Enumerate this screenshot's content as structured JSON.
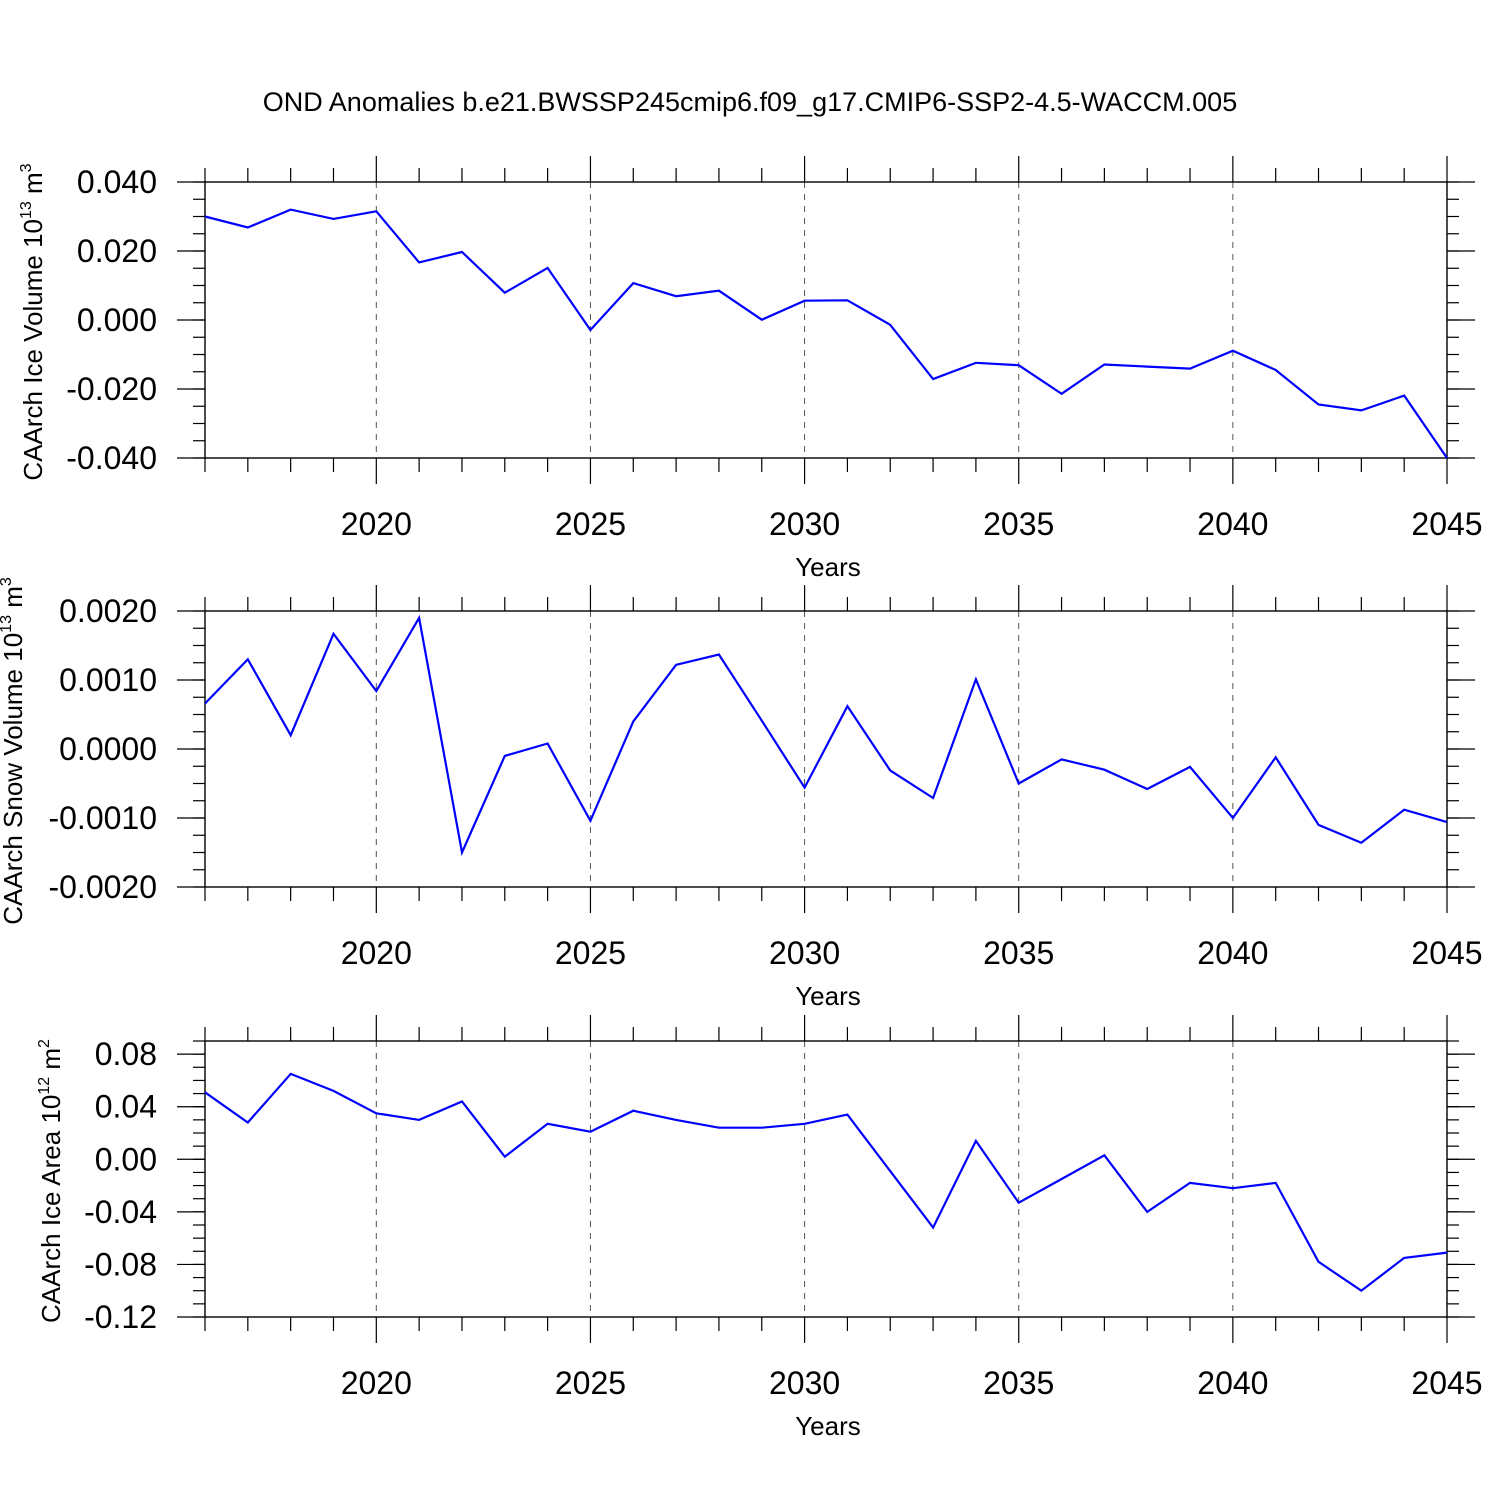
{
  "title": "OND Anomalies b.e21.BWSSP245cmip6.f09_g17.CMIP6-SSP2-4.5-WACCM.005",
  "series_color": "#0000ff",
  "chart_data": [
    {
      "type": "line",
      "xlabel": "Years",
      "ylabel": {
        "main": "CAArch Ice Volume 10",
        "exp": "13",
        "unit": " m",
        "unit_exp": "3"
      },
      "xlim": [
        2016,
        2045
      ],
      "ylim": [
        -0.04,
        0.04
      ],
      "grid": "vertical dashed at major x ticks",
      "x_ticks": [
        2020,
        2025,
        2030,
        2035,
        2040,
        2045
      ],
      "x_tick_labels": [
        "2020",
        "2025",
        "2030",
        "2035",
        "2040",
        "2045"
      ],
      "y_ticks": [
        -0.04,
        -0.02,
        0.0,
        0.02,
        0.04
      ],
      "y_tick_labels": [
        "-0.040",
        "-0.020",
        "0.000",
        "0.020",
        "0.040"
      ],
      "y_minor_step": 0.005,
      "x": [
        2016,
        2017,
        2018,
        2019,
        2020,
        2021,
        2022,
        2023,
        2024,
        2025,
        2026,
        2027,
        2028,
        2029,
        2030,
        2031,
        2032,
        2033,
        2034,
        2035,
        2036,
        2037,
        2038,
        2039,
        2040,
        2041,
        2042,
        2043,
        2044,
        2045
      ],
      "series": [
        {
          "values": [
            0.03,
            0.0268,
            0.032,
            0.0293,
            0.0315,
            0.0167,
            0.0197,
            0.0079,
            0.0151,
            -0.0029,
            0.0107,
            0.0069,
            0.0085,
            0.0001,
            0.0056,
            0.0057,
            -0.0014,
            -0.0171,
            -0.0124,
            -0.0131,
            -0.0214,
            -0.0129,
            -0.0135,
            -0.0141,
            -0.0089,
            -0.0145,
            -0.0245,
            -0.0262,
            -0.0219,
            -0.04
          ]
        }
      ]
    },
    {
      "type": "line",
      "xlabel": "Years",
      "ylabel": {
        "main": "CAArch Snow Volume 10",
        "exp": "13",
        "unit": " m",
        "unit_exp": "3"
      },
      "xlim": [
        2016,
        2045
      ],
      "ylim": [
        -0.002,
        0.002
      ],
      "grid": "vertical dashed at major x ticks",
      "x_ticks": [
        2020,
        2025,
        2030,
        2035,
        2040,
        2045
      ],
      "x_tick_labels": [
        "2020",
        "2025",
        "2030",
        "2035",
        "2040",
        "2045"
      ],
      "y_ticks": [
        -0.002,
        -0.001,
        0.0,
        0.001,
        0.002
      ],
      "y_tick_labels": [
        "-0.0020",
        "-0.0010",
        "0.0000",
        "0.0010",
        "0.0020"
      ],
      "y_minor_step": 0.00025,
      "x": [
        2016,
        2017,
        2018,
        2019,
        2020,
        2021,
        2022,
        2023,
        2024,
        2025,
        2026,
        2027,
        2028,
        2029,
        2030,
        2031,
        2032,
        2033,
        2034,
        2035,
        2036,
        2037,
        2038,
        2039,
        2040,
        2041,
        2042,
        2043,
        2044,
        2045
      ],
      "series": [
        {
          "values": [
            0.00066,
            0.0013,
            0.0002,
            0.00167,
            0.00084,
            0.0019,
            -0.0015,
            -0.0001,
            8e-05,
            -0.00104,
            0.0004,
            0.00122,
            0.00137,
            0.00041,
            -0.00056,
            0.00062,
            -0.00031,
            -0.00071,
            0.00101,
            -0.0005,
            -0.00015,
            -0.0003,
            -0.00058,
            -0.00026,
            -0.001,
            -0.00012,
            -0.0011,
            -0.00136,
            -0.00088,
            -0.00106
          ]
        }
      ]
    },
    {
      "type": "line",
      "xlabel": "Years",
      "ylabel": {
        "main": "CAArch Ice Area 10",
        "exp": "12",
        "unit": " m",
        "unit_exp": "2"
      },
      "xlim": [
        2016,
        2045
      ],
      "ylim": [
        -0.12,
        0.09
      ],
      "grid": "vertical dashed at major x ticks",
      "x_ticks": [
        2020,
        2025,
        2030,
        2035,
        2040,
        2045
      ],
      "x_tick_labels": [
        "2020",
        "2025",
        "2030",
        "2035",
        "2040",
        "2045"
      ],
      "y_ticks": [
        -0.12,
        -0.08,
        -0.04,
        0.0,
        0.04,
        0.08
      ],
      "y_tick_labels": [
        "-0.12",
        "-0.08",
        "-0.04",
        "0.00",
        "0.04",
        "0.08"
      ],
      "y_minor_step": 0.01,
      "x": [
        2016,
        2017,
        2018,
        2019,
        2020,
        2021,
        2022,
        2023,
        2024,
        2025,
        2026,
        2027,
        2028,
        2029,
        2030,
        2031,
        2032,
        2033,
        2034,
        2035,
        2036,
        2037,
        2038,
        2039,
        2040,
        2041,
        2042,
        2043,
        2044,
        2045
      ],
      "series": [
        {
          "values": [
            0.051,
            0.028,
            0.065,
            0.052,
            0.035,
            0.03,
            0.044,
            0.002,
            0.027,
            0.021,
            0.037,
            0.03,
            0.024,
            0.024,
            0.027,
            0.034,
            -0.009,
            -0.052,
            0.014,
            -0.033,
            -0.015,
            0.003,
            -0.04,
            -0.018,
            -0.022,
            -0.018,
            -0.078,
            -0.1,
            -0.075,
            -0.071
          ]
        }
      ]
    }
  ]
}
